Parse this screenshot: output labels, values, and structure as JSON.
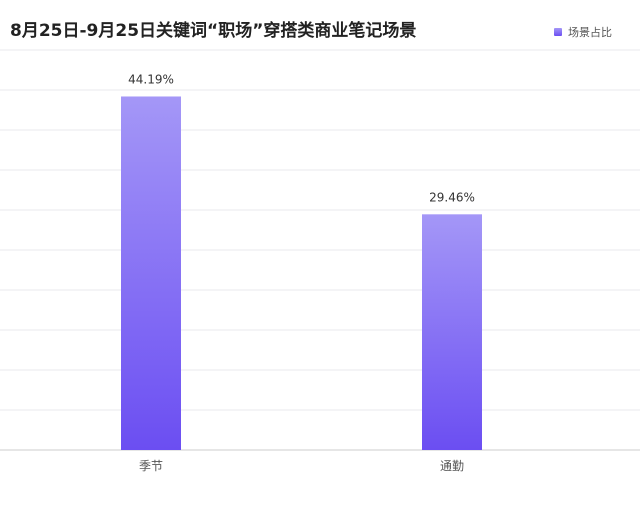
{
  "chart_data": {
    "type": "bar",
    "title": "8月25日-9月25日关键词“职场”穿搭类商业笔记场景",
    "xlabel": "",
    "ylabel": "",
    "categories": [
      "季节",
      "通勤"
    ],
    "series": [
      {
        "name": "场景占比",
        "values": [
          44.19,
          29.46
        ],
        "value_labels": [
          "44.19%",
          "29.46%"
        ],
        "color_top": "#a497f7",
        "color_bottom": "#6b4ef2"
      }
    ],
    "ylim": [
      0,
      50
    ],
    "grid": true,
    "legend_position": "top-right"
  },
  "colors": {
    "grid": "#e9e9ee",
    "axis": "#cccccc",
    "text": "#555555",
    "title": "#222222"
  }
}
